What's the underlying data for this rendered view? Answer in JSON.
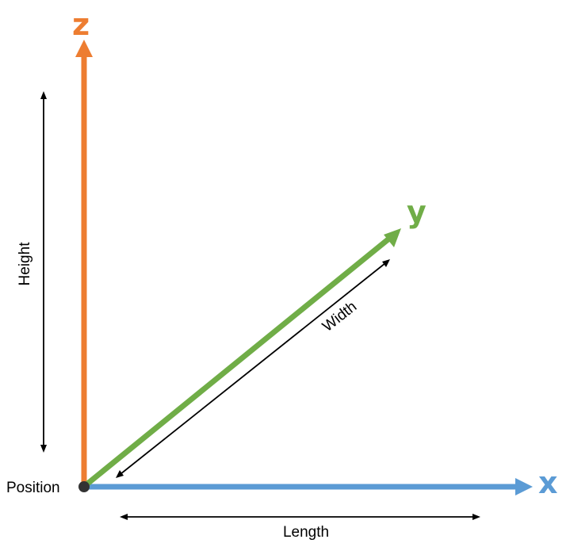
{
  "axes": {
    "z": {
      "label": "z",
      "color": "#ED7D31"
    },
    "y": {
      "label": "y",
      "color": "#70AD47"
    },
    "x": {
      "label": "x",
      "color": "#5B9BD5"
    }
  },
  "dimensions": {
    "height": "Height",
    "width": "Width",
    "length": "Length"
  },
  "origin": {
    "label": "Position",
    "color": "#333333"
  },
  "colors": {
    "dimension_arrow": "#000000",
    "background": "#ffffff"
  }
}
